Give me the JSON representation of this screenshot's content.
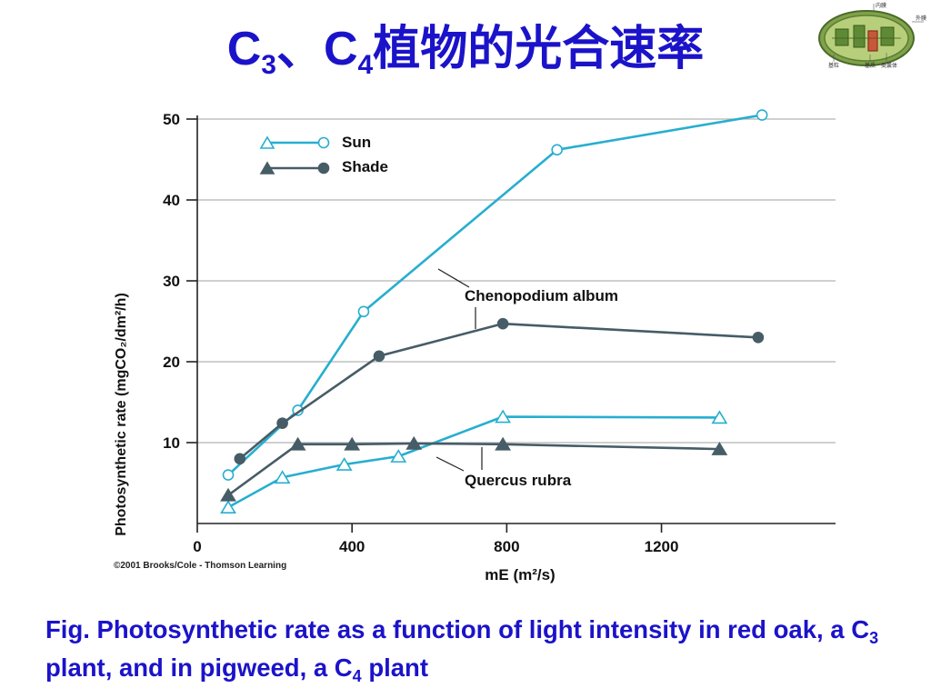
{
  "slide": {
    "title": {
      "prefix": "C",
      "sub1": "3",
      "sep": "、C",
      "sub2": "4",
      "suffix": "植物的光合速率"
    },
    "caption": {
      "part1": "Fig. Photosynthetic rate as a function of light intensity in red oak, a C",
      "sub1": "3",
      "part2": " plant, and in pigweed, a C",
      "sub2": "4",
      "part3": " plant"
    },
    "chloroplast_labels": [
      "内膜",
      "外膜",
      "基粒",
      "基质",
      "类囊体"
    ]
  },
  "chart_data": {
    "type": "line",
    "xlabel": "mE (m²/s)",
    "ylabel": "Photosynthetic rate (mgCO₂/dm²/h)",
    "xlim": [
      0,
      1650
    ],
    "ylim": [
      0,
      50
    ],
    "xticks": [
      0,
      400,
      800,
      1200
    ],
    "yticks": [
      10,
      20,
      30,
      40,
      50
    ],
    "grid": true,
    "legend_position": "top-left",
    "legend": [
      {
        "label": "Sun",
        "marker_pair": [
          "triangle",
          "circle"
        ],
        "filled": false,
        "color": "#27aed0"
      },
      {
        "label": "Shade",
        "marker_pair": [
          "triangle",
          "circle"
        ],
        "filled": true,
        "color": "#465c66"
      }
    ],
    "annotations": [
      "Chenopodium album",
      "Quercus rubra"
    ],
    "copyright": "©2001 Brooks/Cole - Thomson Learning",
    "series": [
      {
        "name": "Chenopodium album",
        "condition": "Sun",
        "marker": "circle",
        "filled": false,
        "color": "#27aed0",
        "x": [
          80,
          260,
          430,
          930,
          1460
        ],
        "y": [
          6.0,
          14.0,
          26.2,
          46.2,
          50.5
        ]
      },
      {
        "name": "Chenopodium album",
        "condition": "Shade",
        "marker": "circle",
        "filled": true,
        "color": "#465c66",
        "x": [
          110,
          220,
          470,
          790,
          1450
        ],
        "y": [
          8.0,
          12.4,
          20.7,
          24.7,
          23.0
        ]
      },
      {
        "name": "Quercus rubra",
        "condition": "Sun",
        "marker": "triangle",
        "filled": false,
        "color": "#27aed0",
        "x": [
          80,
          220,
          380,
          520,
          790,
          1350
        ],
        "y": [
          2.0,
          5.7,
          7.3,
          8.3,
          13.2,
          13.1
        ]
      },
      {
        "name": "Quercus rubra",
        "condition": "Shade",
        "marker": "triangle",
        "filled": true,
        "color": "#465c66",
        "x": [
          80,
          260,
          400,
          560,
          790,
          1350
        ],
        "y": [
          3.5,
          9.8,
          9.8,
          9.9,
          9.8,
          9.2
        ]
      }
    ]
  }
}
